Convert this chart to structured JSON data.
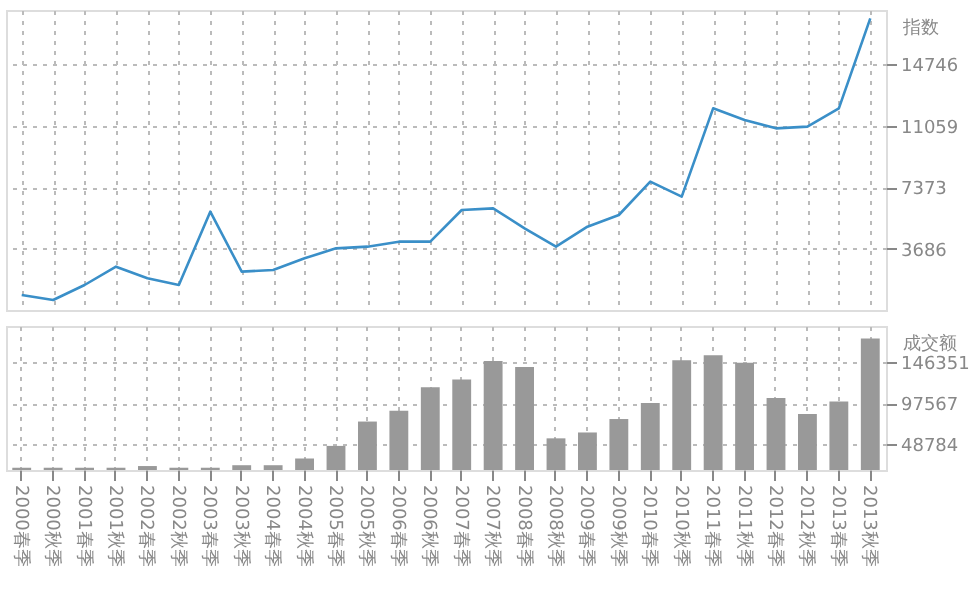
{
  "chart_data": [
    {
      "type": "line",
      "ylabel": "指数",
      "categories": [
        null,
        null,
        null,
        null,
        null,
        null,
        null,
        null,
        null,
        null,
        null,
        null,
        null,
        null,
        null,
        null,
        null,
        null,
        null,
        null,
        null,
        null,
        null,
        null,
        null,
        null,
        null,
        null
      ],
      "series": [
        {
          "color": "#3a8fc8",
          "values": [
            900,
            600,
            1500,
            2600,
            1900,
            1500,
            5900,
            2300,
            2400,
            3100,
            3700,
            3800,
            4100,
            4100,
            6000,
            6100,
            4900,
            3800,
            5000,
            5700,
            7700,
            6800,
            12100,
            11400,
            10900,
            11000,
            12100,
            17500
          ]
        }
      ],
      "ylim": [
        0,
        18000
      ],
      "yticks": [
        3686,
        7373,
        11059,
        14746
      ],
      "grid": true,
      "tick_labels": "y",
      "marker": "none",
      "line_style": "solid"
    },
    {
      "type": "bar",
      "ylabel": "成交额",
      "categories": [
        "2000春季",
        "2000秋季",
        "2001春季",
        "2001秋季",
        "2002春季",
        "2002秋季",
        "2003春季",
        "2003秋季",
        "2004春季",
        "2004秋季",
        "2005春季",
        "2005秋季",
        "2006春季",
        "2006秋季",
        "2007春季",
        "2007秋季",
        "2008春季",
        "2008秋季",
        "2009春季",
        "2009秋季",
        "2010春季",
        "2010秋季",
        "2011春季",
        "2011秋季",
        "2012春季",
        "2012秋季",
        "2013春季",
        "2013秋季"
      ],
      "series": [
        {
          "color": "#999999",
          "values": [
            21000,
            21000,
            21000,
            21000,
            23000,
            21000,
            21000,
            24000,
            24000,
            32000,
            47000,
            76000,
            89000,
            117000,
            126000,
            148000,
            141000,
            56000,
            63000,
            79000,
            98000,
            149000,
            155000,
            146000,
            104000,
            85000,
            100000,
            175000
          ]
        }
      ],
      "ylim": [
        18300,
        189800
      ],
      "yticks": [
        48784,
        97567,
        146351
      ],
      "grid": true
    }
  ]
}
